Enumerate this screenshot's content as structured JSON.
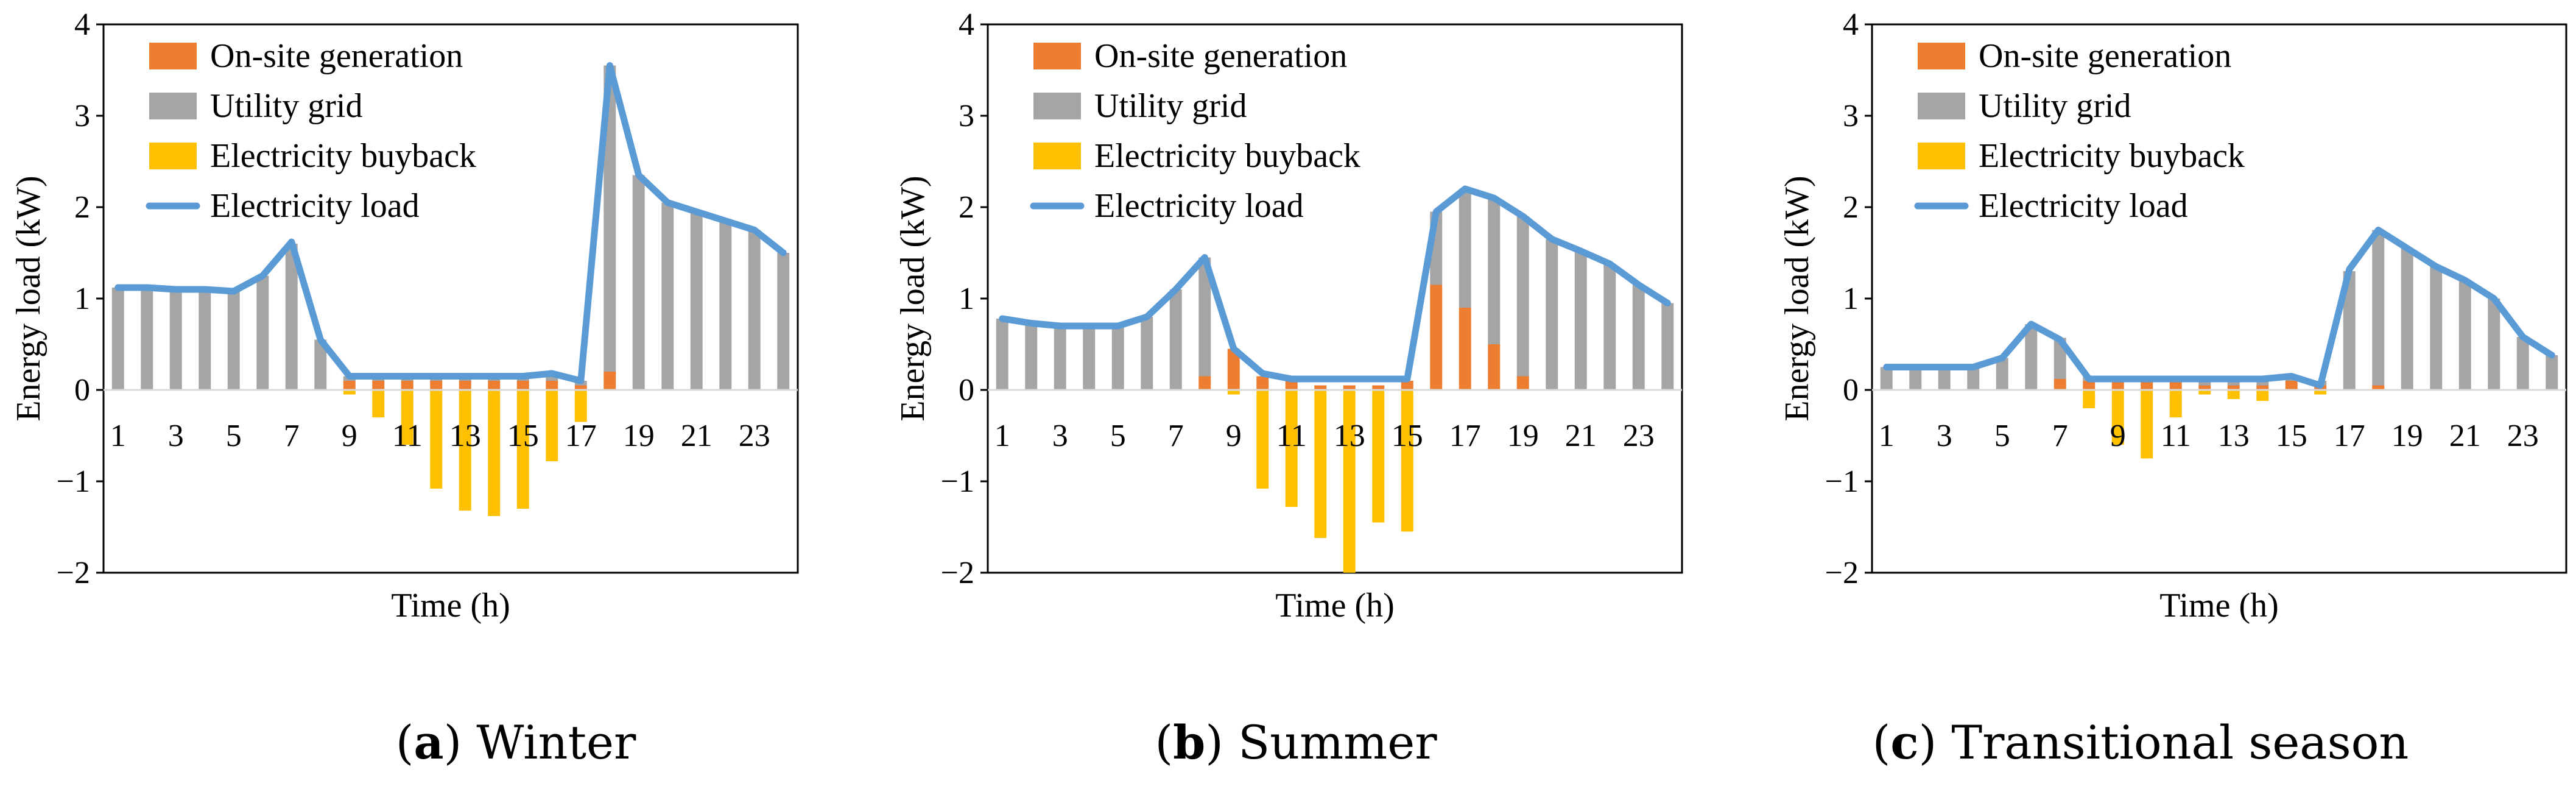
{
  "figure": {
    "panels": [
      {
        "caption_letter": "a",
        "caption_text": "Winter"
      },
      {
        "caption_letter": "b",
        "caption_text": "Summer"
      },
      {
        "caption_letter": "c",
        "caption_text": "Transitional season"
      }
    ],
    "colors": {
      "onsite": "#ED7D31",
      "grid": "#A5A5A5",
      "buyback": "#FFC000",
      "load": "#5B9BD5"
    }
  },
  "chart_data": [
    {
      "type": "bar",
      "title": "",
      "xlabel": "Time (h)",
      "ylabel": "Energy load (kW)",
      "ylim": [
        -2,
        4
      ],
      "yticks": [
        "−2",
        "−1",
        "0",
        "1",
        "2",
        "3",
        "4"
      ],
      "x": [
        1,
        2,
        3,
        4,
        5,
        6,
        7,
        8,
        9,
        10,
        11,
        12,
        13,
        14,
        15,
        16,
        17,
        18,
        19,
        20,
        21,
        22,
        23,
        24
      ],
      "xtick_labels": [
        "1",
        "3",
        "5",
        "7",
        "9",
        "11",
        "13",
        "15",
        "17",
        "19",
        "21",
        "23"
      ],
      "legend": [
        "On-site generation",
        "Utility grid",
        "Electricity buyback",
        "Electricity load"
      ],
      "series": [
        {
          "name": "On-site generation",
          "values": [
            0,
            0,
            0,
            0,
            0,
            0,
            0,
            0,
            0.1,
            0.1,
            0.1,
            0.1,
            0.1,
            0.1,
            0.1,
            0.1,
            0.05,
            0.2,
            0,
            0,
            0,
            0,
            0,
            0
          ]
        },
        {
          "name": "Utility grid",
          "values": [
            1.12,
            1.12,
            1.1,
            1.1,
            1.08,
            1.25,
            1.6,
            0.55,
            0.05,
            0.05,
            0.05,
            0.05,
            0.05,
            0.05,
            0.05,
            0.05,
            0.05,
            3.35,
            2.35,
            2.05,
            1.95,
            1.85,
            1.75,
            1.5
          ]
        },
        {
          "name": "Electricity buyback",
          "values": [
            0,
            0,
            0,
            0,
            0,
            0,
            0,
            0,
            -0.05,
            -0.3,
            -0.6,
            -1.08,
            -1.32,
            -1.38,
            -1.3,
            -0.78,
            -0.35,
            0,
            0,
            0,
            0,
            0,
            0,
            0
          ]
        },
        {
          "name": "Electricity load",
          "values": [
            1.12,
            1.12,
            1.1,
            1.1,
            1.08,
            1.25,
            1.62,
            0.55,
            0.15,
            0.15,
            0.15,
            0.15,
            0.15,
            0.15,
            0.15,
            0.18,
            0.1,
            3.55,
            2.35,
            2.05,
            1.95,
            1.85,
            1.75,
            1.5
          ]
        }
      ]
    },
    {
      "type": "bar",
      "title": "",
      "xlabel": "Time (h)",
      "ylabel": "Energy load (kW)",
      "ylim": [
        -2,
        4
      ],
      "yticks": [
        "−2",
        "−1",
        "0",
        "1",
        "2",
        "3",
        "4"
      ],
      "x": [
        1,
        2,
        3,
        4,
        5,
        6,
        7,
        8,
        9,
        10,
        11,
        12,
        13,
        14,
        15,
        16,
        17,
        18,
        19,
        20,
        21,
        22,
        23,
        24
      ],
      "xtick_labels": [
        "1",
        "3",
        "5",
        "7",
        "9",
        "11",
        "13",
        "15",
        "17",
        "19",
        "21",
        "23"
      ],
      "legend": [
        "On-site generation",
        "Utility grid",
        "Electricity buyback",
        "Electricity load"
      ],
      "series": [
        {
          "name": "On-site generation",
          "values": [
            0,
            0,
            0,
            0,
            0,
            0,
            0,
            0.15,
            0.45,
            0.15,
            0.1,
            0.05,
            0.05,
            0.05,
            0.1,
            1.15,
            0.9,
            0.5,
            0.15,
            0,
            0,
            0,
            0,
            0
          ]
        },
        {
          "name": "Utility grid",
          "values": [
            0.78,
            0.73,
            0.7,
            0.7,
            0.7,
            0.8,
            1.1,
            1.3,
            0,
            0,
            0,
            0,
            0,
            0,
            0,
            0.8,
            1.3,
            1.6,
            1.75,
            1.65,
            1.52,
            1.38,
            1.15,
            0.95
          ]
        },
        {
          "name": "Electricity buyback",
          "values": [
            0,
            0,
            0,
            0,
            0,
            0,
            0,
            0,
            -0.05,
            -1.08,
            -1.28,
            -1.62,
            -2.0,
            -1.45,
            -1.55,
            0,
            0,
            0,
            0,
            0,
            0,
            0,
            0,
            0
          ]
        },
        {
          "name": "Electricity load",
          "values": [
            0.78,
            0.73,
            0.7,
            0.7,
            0.7,
            0.8,
            1.1,
            1.45,
            0.45,
            0.18,
            0.12,
            0.12,
            0.12,
            0.12,
            0.12,
            1.95,
            2.2,
            2.1,
            1.9,
            1.65,
            1.52,
            1.38,
            1.15,
            0.95
          ]
        }
      ]
    },
    {
      "type": "bar",
      "title": "",
      "xlabel": "Time (h)",
      "ylabel": "Energy load (kW)",
      "ylim": [
        -2,
        4
      ],
      "yticks": [
        "−2",
        "−1",
        "0",
        "1",
        "2",
        "3",
        "4"
      ],
      "x": [
        1,
        2,
        3,
        4,
        5,
        6,
        7,
        8,
        9,
        10,
        11,
        12,
        13,
        14,
        15,
        16,
        17,
        18,
        19,
        20,
        21,
        22,
        23,
        24
      ],
      "xtick_labels": [
        "1",
        "3",
        "5",
        "7",
        "9",
        "11",
        "13",
        "15",
        "17",
        "19",
        "21",
        "23"
      ],
      "legend": [
        "On-site generation",
        "Utility grid",
        "Electricity buyback",
        "Electricity load"
      ],
      "series": [
        {
          "name": "On-site generation",
          "values": [
            0,
            0,
            0,
            0,
            0,
            0,
            0.12,
            0.1,
            0.1,
            0.1,
            0.1,
            0.05,
            0.05,
            0.05,
            0.1,
            0.05,
            0,
            0.05,
            0,
            0,
            0,
            0,
            0,
            0
          ]
        },
        {
          "name": "Utility grid",
          "values": [
            0.25,
            0.25,
            0.25,
            0.25,
            0.35,
            0.72,
            0.45,
            0.05,
            0.05,
            0.05,
            0.05,
            0.05,
            0.05,
            0.05,
            0.05,
            0.05,
            1.3,
            1.7,
            1.55,
            1.35,
            1.2,
            1.0,
            0.58,
            0.38
          ]
        },
        {
          "name": "Electricity buyback",
          "values": [
            0,
            0,
            0,
            0,
            0,
            0,
            0,
            -0.2,
            -0.6,
            -0.75,
            -0.3,
            -0.05,
            -0.1,
            -0.12,
            0,
            -0.05,
            0,
            0,
            0,
            0,
            0,
            0,
            0,
            0
          ]
        },
        {
          "name": "Electricity load",
          "values": [
            0.25,
            0.25,
            0.25,
            0.25,
            0.35,
            0.72,
            0.55,
            0.12,
            0.12,
            0.12,
            0.12,
            0.12,
            0.12,
            0.12,
            0.15,
            0.05,
            1.32,
            1.75,
            1.55,
            1.35,
            1.2,
            1.0,
            0.58,
            0.38
          ]
        }
      ]
    }
  ]
}
